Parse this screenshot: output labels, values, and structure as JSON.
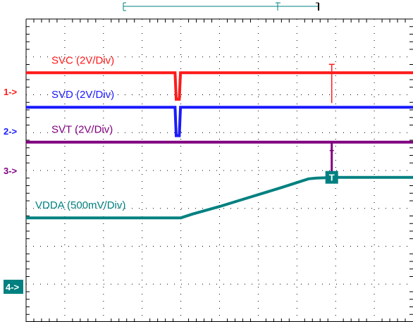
{
  "chart_data": {
    "type": "line",
    "title": "",
    "xlabel": "",
    "ylabel": "",
    "grid": true,
    "divisions": {
      "x": 10,
      "y": 8
    },
    "xlim": [
      0,
      10
    ],
    "ylim": [
      0,
      8
    ],
    "series": [
      {
        "name": "SVC (2V/Div)",
        "color": "#ff1a1a",
        "channel_marker": "1->",
        "x": [
          0,
          3.85,
          3.88,
          3.96,
          3.99,
          10
        ],
        "y": [
          6.58,
          6.58,
          5.88,
          5.88,
          6.58,
          6.58
        ]
      },
      {
        "name": "SVD (2V/Div)",
        "color": "#1a1aff",
        "channel_marker": "2->",
        "x": [
          0,
          3.85,
          3.88,
          3.96,
          3.99,
          10
        ],
        "y": [
          5.67,
          5.67,
          4.92,
          4.92,
          5.67,
          5.67
        ]
      },
      {
        "name": "SVT (2V/Div)",
        "color": "#800080",
        "channel_marker": "3->",
        "x": [
          0,
          10
        ],
        "y": [
          4.75,
          4.75
        ]
      },
      {
        "name": "VDDA (500mV/Div)",
        "color": "#008080",
        "channel_marker": "4->",
        "x": [
          0,
          4.0,
          4.3,
          5.0,
          5.8,
          6.6,
          7.3,
          7.5,
          8.0,
          10
        ],
        "y": [
          2.75,
          2.75,
          2.85,
          3.05,
          3.3,
          3.55,
          3.78,
          3.8,
          3.82,
          3.82
        ]
      }
    ],
    "trigger": {
      "label": "T",
      "x": 7.9
    }
  }
}
